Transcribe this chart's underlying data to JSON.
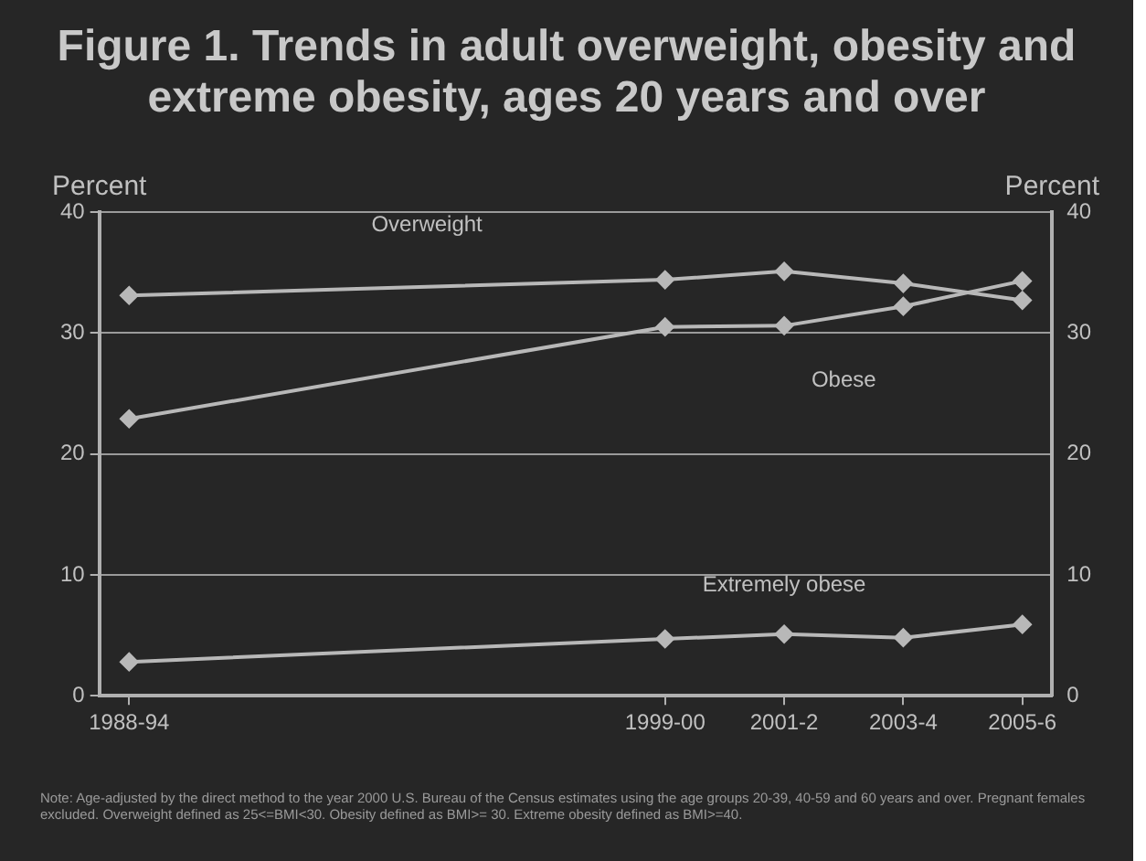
{
  "chart_data": {
    "type": "line",
    "title": "Figure 1. Trends in adult overweight, obesity and extreme obesity, ages 20 years and over",
    "ylabel": "Percent",
    "y2label": "Percent",
    "categories": [
      "1988-94",
      null,
      null,
      null,
      null,
      null,
      null,
      null,
      null,
      "1999-00",
      null,
      "2001-2",
      null,
      "2003-4",
      null,
      "2005-6"
    ],
    "ylim": [
      0,
      40
    ],
    "yticks": [
      0,
      10,
      20,
      30,
      40
    ],
    "y2lim": [
      0,
      40
    ],
    "y2ticks": [
      0,
      10,
      20,
      30,
      40
    ],
    "series": [
      {
        "name": "Overweight",
        "color": "#b8b8b8",
        "values": [
          33.1,
          null,
          null,
          null,
          null,
          null,
          null,
          null,
          null,
          34.4,
          null,
          35.1,
          null,
          34.1,
          null,
          32.7
        ]
      },
      {
        "name": "Obese",
        "color": "#b8b8b8",
        "values": [
          22.9,
          null,
          null,
          null,
          null,
          null,
          null,
          null,
          null,
          30.5,
          null,
          30.6,
          null,
          32.2,
          null,
          34.3
        ]
      },
      {
        "name": "Extremely obese",
        "color": "#b8b8b8",
        "values": [
          2.8,
          null,
          null,
          null,
          null,
          null,
          null,
          null,
          null,
          4.7,
          null,
          5.1,
          null,
          4.8,
          null,
          5.9
        ]
      }
    ],
    "annotations": [
      "Note: Age-adjusted by the direct method to the year 2000 U.S. Bureau of the Census estimates using the age groups 20-39, 40-59 and 60 years and over. Pregnant females excluded. Overweight defined as 25<=BMI<30. Obesity defined as BMI>= 30. Extreme obesity defined as BMI>=40."
    ],
    "grid": "y",
    "legend": false,
    "marker": "diamond",
    "line_style": "solid"
  }
}
